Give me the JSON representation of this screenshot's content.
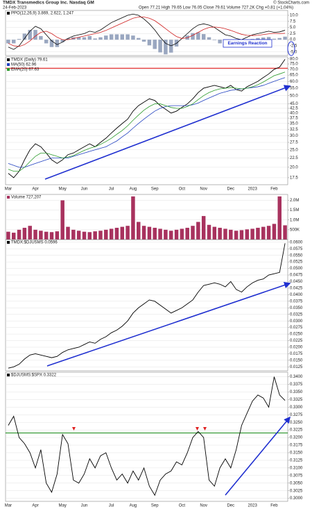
{
  "header": {
    "title": "TMDX Transmedics Group Inc. Nasdaq GM",
    "date": "24-Feb-2023",
    "quote": "Open 77.21 High 79.65 Low 76.05 Close 79.61 Volume 727.2K Chg +0.81 (+1.04%)",
    "source": "© StockCharts.com"
  },
  "chart_data": [
    {
      "type": "line",
      "annotation": "Earnings Reaction",
      "ylim": [
        -6.5,
        12
      ],
      "yticks": [
        {
          "value": -5,
          "label": "-5.0"
        },
        {
          "value": -2.5,
          "label": "-2.5"
        },
        {
          "value": 0,
          "label": "0.0"
        },
        {
          "value": 2.5,
          "label": "2.5"
        },
        {
          "value": 5,
          "label": "5.0"
        },
        {
          "value": 7.5,
          "label": "7.5"
        },
        {
          "value": 10,
          "label": "10.0"
        }
      ],
      "series": [
        {
          "kind": "bar",
          "color": "#9aa7c0",
          "values": [
            -1.5,
            -1.5,
            0.3,
            2.5,
            4.0,
            4.0,
            1.5,
            -1.5,
            -3.0,
            -3.0,
            -1.0,
            0.5,
            1.0,
            1.0,
            1.0,
            1.5,
            0.5,
            1.0,
            1.7,
            2.2,
            2.2,
            2.2,
            2.2,
            1.7,
            0.7,
            -0.8,
            -2.3,
            -3.8,
            -5.2,
            -6.0,
            -5.3,
            -2.8,
            0.0,
            1.7,
            2.7,
            3.0,
            2.3,
            1.0,
            -0.2,
            -1.5,
            -2.5,
            -2.3,
            -2.5,
            -2.2,
            -0.8,
            0.3,
            0.7,
            0.9,
            1.1,
            0.4,
            0.7,
            1.247
          ]
        },
        {
          "name": "PPO(12,26,9) 3.869, 2.622, 1.247",
          "color": "#000000",
          "values": [
            -3.0,
            -4.0,
            -2.5,
            0.5,
            3.5,
            5.5,
            4.5,
            2.0,
            -0.5,
            -2.0,
            -1.0,
            0.5,
            1.5,
            2.0,
            2.5,
            3.5,
            3.0,
            4.0,
            5.5,
            7.0,
            8.0,
            9.0,
            10.0,
            10.5,
            10.0,
            8.5,
            6.5,
            4.0,
            1.0,
            -1.5,
            -2.5,
            -1.5,
            0.5,
            2.5,
            4.5,
            6.0,
            6.5,
            6.0,
            5.0,
            3.5,
            2.0,
            1.5,
            0.5,
            0.0,
            1.0,
            2.0,
            2.5,
            3.0,
            3.5,
            3.0,
            3.2,
            3.869
          ]
        },
        {
          "color": "#d02020",
          "values": [
            -1.5,
            -2.5,
            -2.8,
            -2.0,
            -0.5,
            1.5,
            3.0,
            3.5,
            2.5,
            1.0,
            0.0,
            0.0,
            0.5,
            1.0,
            1.5,
            2.0,
            2.5,
            3.0,
            3.8,
            4.8,
            5.8,
            6.8,
            7.8,
            8.8,
            9.3,
            9.3,
            8.8,
            7.8,
            6.2,
            4.5,
            2.8,
            1.3,
            0.5,
            0.8,
            1.8,
            3.0,
            4.2,
            5.0,
            5.2,
            5.0,
            4.5,
            3.8,
            3.0,
            2.2,
            1.8,
            1.7,
            1.8,
            2.1,
            2.4,
            2.6,
            2.5,
            2.622
          ]
        }
      ]
    },
    {
      "type": "line",
      "log_scale": true,
      "ylim": [
        16,
        82
      ],
      "yticks": [
        17.5,
        {
          "value": 20,
          "label": "20.0"
        },
        22.5,
        {
          "value": 25,
          "label": "25.0"
        },
        27.5,
        {
          "value": 30,
          "label": "30.0"
        },
        32.5,
        {
          "value": 35,
          "label": "35.0"
        },
        37.5,
        {
          "value": 40,
          "label": "40.0"
        },
        42.5,
        {
          "value": 45,
          "label": "45.0"
        },
        {
          "value": 50,
          "label": "50.0"
        },
        {
          "value": 55,
          "label": "55.0"
        },
        {
          "value": 60,
          "label": "60.0"
        },
        {
          "value": 65,
          "label": "65.0"
        },
        {
          "value": 70,
          "label": "70.0"
        },
        {
          "value": 75,
          "label": "75.0"
        },
        {
          "value": 80,
          "label": "80.0"
        }
      ],
      "hline": {
        "value": 71,
        "color": "#e00000"
      },
      "categories": [
        "Mar",
        null,
        null,
        null,
        null,
        "Apr",
        null,
        null,
        null,
        null,
        "May",
        null,
        null,
        null,
        "Jun",
        null,
        null,
        null,
        null,
        "Jul",
        null,
        null,
        null,
        "Aug",
        null,
        null,
        null,
        "Sep",
        null,
        null,
        null,
        null,
        "Oct",
        null,
        null,
        null,
        "Nov",
        null,
        null,
        null,
        null,
        "Dec",
        null,
        null,
        null,
        "2023",
        null,
        null,
        null,
        "Feb",
        null,
        null
      ],
      "series": [
        {
          "name": "TMDX (Daily) 79.61",
          "color": "#000000",
          "values": [
            18.5,
            17.5,
            19,
            22,
            25,
            27,
            26,
            24,
            22,
            21,
            22,
            23.5,
            24,
            25,
            26,
            27,
            26,
            27.5,
            29,
            31,
            33,
            35,
            37,
            41,
            44,
            46,
            48,
            47,
            44,
            42,
            40,
            41,
            43,
            45,
            48,
            52,
            55,
            56,
            57,
            56,
            55,
            57,
            54,
            53,
            56,
            58,
            60,
            63,
            66,
            70,
            72,
            79.61
          ]
        },
        {
          "name": "MA(50) 62.96",
          "color": "#2040c0",
          "values": [
            21,
            20.5,
            20,
            20,
            20.5,
            21,
            21.5,
            22,
            22.5,
            22.5,
            22.5,
            22.5,
            23,
            23.5,
            24,
            24.5,
            25,
            25.5,
            26,
            27,
            28,
            29.5,
            31,
            33,
            35,
            37,
            39,
            41,
            42.5,
            43.5,
            44,
            44,
            44,
            44,
            44.5,
            45.5,
            47,
            48.5,
            50,
            51.5,
            52.5,
            53.5,
            54,
            54.5,
            55,
            55.5,
            56,
            57,
            58.5,
            60,
            61.5,
            62.96
          ]
        },
        {
          "name": "EMA(20) 67.63",
          "color": "#2a9a2a",
          "values": [
            19.5,
            19,
            19,
            20,
            21.5,
            23,
            24,
            24,
            23.5,
            23,
            22.5,
            22.8,
            23.2,
            24,
            24.8,
            25.5,
            26,
            26.8,
            27.8,
            29,
            30.5,
            32,
            34,
            36.5,
            39,
            41.5,
            43.5,
            45,
            45,
            44,
            43,
            42.5,
            42.5,
            43.5,
            45,
            47.5,
            50,
            52,
            53.5,
            54.5,
            55,
            55.5,
            55,
            54.5,
            55,
            56,
            57.5,
            59.5,
            62,
            64.5,
            66,
            67.63
          ]
        }
      ]
    },
    {
      "type": "bar",
      "ylim": [
        0,
        2300000
      ],
      "yticks": [
        {
          "value": 500000,
          "label": "500K"
        },
        {
          "value": 1000000,
          "label": "1.0M"
        },
        {
          "value": 1500000,
          "label": "1.5M"
        },
        {
          "value": 2000000,
          "label": "2.0M"
        }
      ],
      "series": [
        {
          "name": "Volume 727,207",
          "kind": "bar",
          "color": "#a8325e",
          "values": [
            400000,
            350000,
            500000,
            600000,
            700000,
            500000,
            450000,
            400000,
            380000,
            420000,
            2000000,
            650000,
            500000,
            450000,
            400000,
            380000,
            420000,
            450000,
            500000,
            550000,
            600000,
            650000,
            700000,
            2200000,
            900000,
            700000,
            650000,
            600000,
            550000,
            500000,
            450000,
            500000,
            550000,
            600000,
            700000,
            900000,
            1200000,
            750000,
            650000,
            600000,
            550000,
            500000,
            450000,
            480000,
            520000,
            550000,
            600000,
            650000,
            700000,
            800000,
            2200000,
            727207
          ]
        }
      ]
    },
    {
      "type": "line",
      "ylim": [
        0.011,
        0.061
      ],
      "yticks": [
        {
          "value": 0.0125,
          "label": "0.0125"
        },
        {
          "value": 0.015,
          "label": "0.0150"
        },
        {
          "value": 0.0175,
          "label": "0.0175"
        },
        {
          "value": 0.02,
          "label": "0.0200"
        },
        {
          "value": 0.0225,
          "label": "0.0225"
        },
        {
          "value": 0.025,
          "label": "0.0250"
        },
        {
          "value": 0.0275,
          "label": "0.0275"
        },
        {
          "value": 0.03,
          "label": "0.0300"
        },
        {
          "value": 0.0325,
          "label": "0.0325"
        },
        {
          "value": 0.035,
          "label": "0.0350"
        },
        {
          "value": 0.0375,
          "label": "0.0375"
        },
        {
          "value": 0.04,
          "label": "0.0400"
        },
        {
          "value": 0.0425,
          "label": "0.0425"
        },
        {
          "value": 0.045,
          "label": "0.0450"
        },
        {
          "value": 0.0475,
          "label": "0.0475"
        },
        {
          "value": 0.05,
          "label": "0.0500"
        },
        {
          "value": 0.0525,
          "label": "0.0525"
        },
        {
          "value": 0.055,
          "label": "0.0550"
        },
        {
          "value": 0.0575,
          "label": "0.0575"
        },
        {
          "value": 0.06,
          "label": "0.0600"
        }
      ],
      "series": [
        {
          "name": "TMDX:$DJUSMS 0.0596",
          "color": "#000000",
          "values": [
            0.012,
            0.0125,
            0.0135,
            0.0155,
            0.017,
            0.0175,
            0.017,
            0.0165,
            0.016,
            0.0165,
            0.018,
            0.019,
            0.0195,
            0.02,
            0.021,
            0.022,
            0.0215,
            0.023,
            0.024,
            0.0255,
            0.0265,
            0.028,
            0.03,
            0.033,
            0.035,
            0.0365,
            0.038,
            0.0375,
            0.036,
            0.0345,
            0.033,
            0.034,
            0.035,
            0.0365,
            0.038,
            0.041,
            0.0435,
            0.044,
            0.0445,
            0.044,
            0.043,
            0.045,
            0.042,
            0.041,
            0.043,
            0.0445,
            0.0455,
            0.046,
            0.0475,
            0.048,
            0.0485,
            0.0596
          ]
        }
      ]
    },
    {
      "type": "line",
      "ylim": [
        0.299,
        0.3415
      ],
      "yticks": [
        {
          "value": 0.3,
          "label": "0.3000"
        },
        {
          "value": 0.3025,
          "label": "0.3025"
        },
        {
          "value": 0.305,
          "label": "0.3050"
        },
        {
          "value": 0.3075,
          "label": "0.3075"
        },
        {
          "value": 0.31,
          "label": "0.3100"
        },
        {
          "value": 0.3125,
          "label": "0.3125"
        },
        {
          "value": 0.315,
          "label": "0.3150"
        },
        {
          "value": 0.3175,
          "label": "0.3175"
        },
        {
          "value": 0.32,
          "label": "0.3200"
        },
        {
          "value": 0.3225,
          "label": "0.3225"
        },
        {
          "value": 0.325,
          "label": "0.3250"
        },
        {
          "value": 0.3275,
          "label": "0.3275"
        },
        {
          "value": 0.33,
          "label": "0.3300"
        },
        {
          "value": 0.3325,
          "label": "0.3325"
        },
        {
          "value": 0.335,
          "label": "0.3350"
        },
        {
          "value": 0.3375,
          "label": "0.3375"
        },
        {
          "value": 0.34,
          "label": "0.3400"
        }
      ],
      "hline": {
        "value": 0.3215,
        "color": "#118811"
      },
      "categories": [
        "Mar",
        null,
        null,
        null,
        null,
        "Apr",
        null,
        null,
        null,
        null,
        "May",
        null,
        null,
        null,
        "Jun",
        null,
        null,
        null,
        null,
        "Jul",
        null,
        null,
        null,
        "Aug",
        null,
        null,
        null,
        "Sep",
        null,
        null,
        null,
        null,
        "Oct",
        null,
        null,
        null,
        "Nov",
        null,
        null,
        null,
        null,
        "Dec",
        null,
        null,
        null,
        "2023",
        null,
        null,
        null,
        "Feb",
        null,
        null
      ],
      "series": [
        {
          "name": "$DJUSMS:$SPX 0.3322",
          "color": "#000000",
          "values": [
            0.324,
            0.327,
            0.32,
            0.318,
            0.315,
            0.31,
            0.316,
            0.305,
            0.302,
            0.308,
            0.321,
            0.318,
            0.306,
            0.305,
            0.308,
            0.313,
            0.31,
            0.314,
            0.315,
            0.31,
            0.306,
            0.308,
            0.305,
            0.309,
            0.306,
            0.31,
            0.304,
            0.301,
            0.306,
            0.308,
            0.309,
            0.312,
            0.311,
            0.315,
            0.32,
            0.322,
            0.32,
            0.306,
            0.304,
            0.31,
            0.313,
            0.31,
            0.316,
            0.324,
            0.328,
            0.332,
            0.334,
            0.333,
            0.33,
            0.34,
            0.334,
            0.3322
          ]
        }
      ]
    }
  ]
}
